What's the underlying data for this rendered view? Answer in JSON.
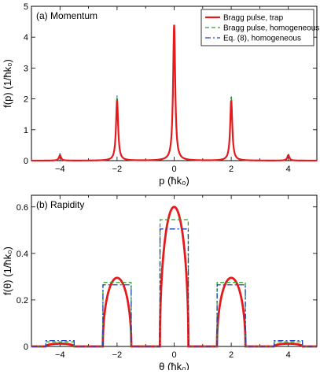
{
  "figure": {
    "colors": {
      "series_1": "#e41a1c",
      "series_2": "#2ca02c",
      "series_3": "#1f3fbf"
    }
  },
  "chart_data": [
    {
      "type": "line",
      "panel_label": "(a) Momentum",
      "xlabel": "p (ħk₀)",
      "ylabel": "f(p) (1/ħk₀)",
      "xlim": [
        -5,
        5
      ],
      "ylim": [
        0,
        5
      ],
      "xticks": [
        -4,
        -2,
        0,
        2,
        4
      ],
      "yticks": [
        0,
        1,
        2,
        3,
        4,
        5
      ],
      "grid": false,
      "legend_position": "top-right",
      "series": [
        {
          "name": "Bragg pulse, trap",
          "style": "solid",
          "peaks": [
            [
              -4,
              0.17
            ],
            [
              -2,
              1.95
            ],
            [
              0,
              4.4
            ],
            [
              2,
              1.95
            ],
            [
              4,
              0.17
            ]
          ]
        },
        {
          "name": "Bragg pulse, homogeneous",
          "style": "dashed",
          "peaks": [
            [
              -4,
              0.2
            ],
            [
              -2,
              2.05
            ],
            [
              0,
              3.95
            ],
            [
              2,
              2.05
            ],
            [
              4,
              0.2
            ]
          ]
        },
        {
          "name": "Eq. (8), homogeneous",
          "style": "dashdot",
          "peaks": [
            [
              -4,
              0.22
            ],
            [
              -2,
              2.1
            ],
            [
              0,
              3.9
            ],
            [
              2,
              2.1
            ],
            [
              4,
              0.22
            ]
          ]
        }
      ]
    },
    {
      "type": "line",
      "panel_label": "(b) Rapidity",
      "xlabel": "θ (ħk₀)",
      "ylabel": "f(θ) (1/ħk₀)",
      "xlim": [
        -5,
        5
      ],
      "ylim": [
        0,
        0.65
      ],
      "xticks": [
        -4,
        -2,
        0,
        2,
        4
      ],
      "yticks": [
        0,
        0.2,
        0.4,
        0.6
      ],
      "ytick_labels": [
        "0",
        "0.2",
        "0.4",
        "0.6"
      ],
      "grid": false,
      "series": [
        {
          "name": "Bragg pulse, trap",
          "style": "solid",
          "domes": [
            [
              -4,
              0.5,
              0.012
            ],
            [
              -2,
              0.5,
              0.295
            ],
            [
              0,
              0.5,
              0.6
            ],
            [
              2,
              0.5,
              0.295
            ],
            [
              4,
              0.5,
              0.012
            ]
          ]
        },
        {
          "name": "Bragg pulse, homogeneous",
          "style": "dashed",
          "plateaus": [
            [
              -4,
              0.5,
              0.02
            ],
            [
              -2,
              0.5,
              0.275
            ],
            [
              0,
              0.5,
              0.545
            ],
            [
              2,
              0.5,
              0.275
            ],
            [
              4,
              0.5,
              0.02
            ]
          ]
        },
        {
          "name": "Eq. (8), homogeneous",
          "style": "dashdot",
          "plateaus": [
            [
              -4,
              0.5,
              0.025
            ],
            [
              -2,
              0.5,
              0.265
            ],
            [
              0,
              0.5,
              0.505
            ],
            [
              2,
              0.5,
              0.265
            ],
            [
              4,
              0.5,
              0.025
            ]
          ]
        }
      ]
    }
  ]
}
